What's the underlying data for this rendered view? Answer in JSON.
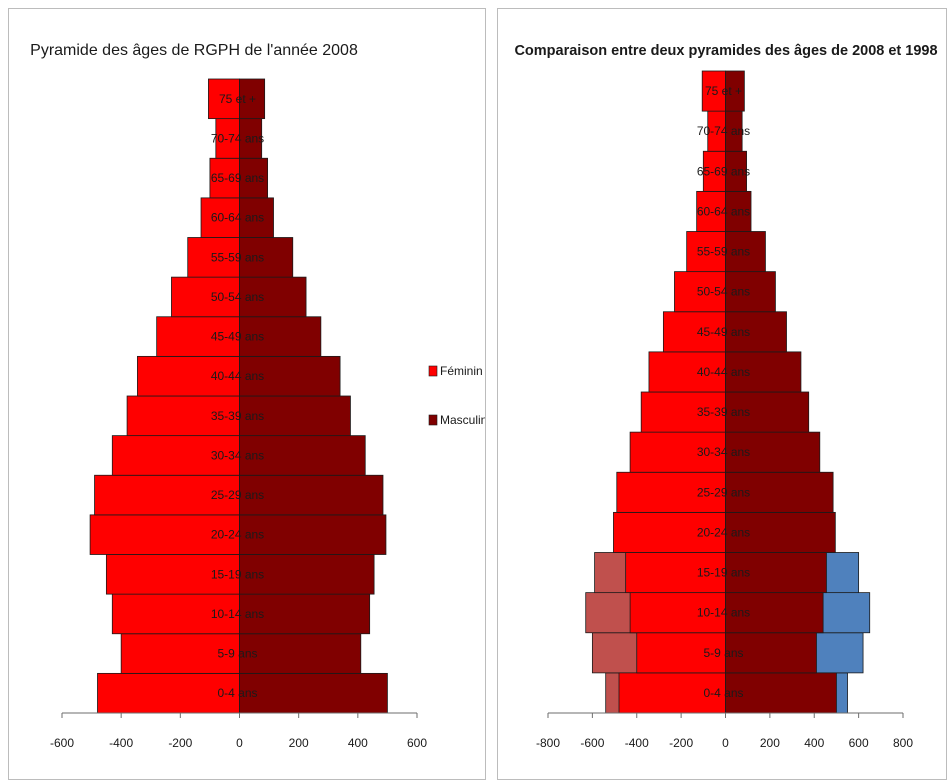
{
  "chart_data": [
    {
      "type": "bar",
      "orientation": "horizontal",
      "title": "Pyramide des âges de RGPH de l'année 2008",
      "categories": [
        "0-4 ans",
        "5-9 ans",
        "10-14 ans",
        "15-19 ans",
        "20-24 ans",
        "25-29 ans",
        "30-34 ans",
        "35-39 ans",
        "40-44 ans",
        "45-49 ans",
        "50-54 ans",
        "55-59 ans",
        "60-64 ans",
        "65-69 ans",
        "70-74 ans",
        "75 et +"
      ],
      "series": [
        {
          "name": "Féminin",
          "color": "#ff0000",
          "values": [
            -480,
            -400,
            -430,
            -450,
            -505,
            -490,
            -430,
            -380,
            -345,
            -280,
            -230,
            -175,
            -130,
            -100,
            -80,
            -105
          ]
        },
        {
          "name": "Masculin",
          "color": "#800000",
          "values": [
            500,
            410,
            440,
            455,
            495,
            485,
            425,
            375,
            340,
            275,
            225,
            180,
            115,
            95,
            75,
            85
          ]
        }
      ],
      "xlim": [
        -600,
        600
      ],
      "xticks": [
        -600,
        -400,
        -200,
        0,
        200,
        400,
        600
      ],
      "legend": "right"
    },
    {
      "type": "bar",
      "orientation": "horizontal",
      "title": "Comparaison entre deux pyramides des âges de 2008 et 1998",
      "categories": [
        "0-4 ans",
        "5-9 ans",
        "10-14 ans",
        "15-19 ans",
        "20-24 ans",
        "25-29 ans",
        "30-34 ans",
        "35-39 ans",
        "40-44 ans",
        "45-49 ans",
        "50-54 ans",
        "55-59 ans",
        "60-64 ans",
        "65-69 ans",
        "70-74 ans",
        "75 et +"
      ],
      "series": [
        {
          "color": "#c0504d",
          "values": [
            -540,
            -600,
            -630,
            -590,
            null,
            null,
            null,
            null,
            null,
            null,
            null,
            null,
            null,
            null,
            null,
            null
          ]
        },
        {
          "color": "#4f81bd",
          "values": [
            550,
            620,
            650,
            600,
            null,
            null,
            null,
            null,
            null,
            null,
            null,
            null,
            null,
            null,
            null,
            null
          ]
        },
        {
          "color": "#ff0000",
          "values": [
            -480,
            -400,
            -430,
            -450,
            -505,
            -490,
            -430,
            -380,
            -345,
            -280,
            -230,
            -175,
            -130,
            -100,
            -80,
            -105
          ]
        },
        {
          "color": "#800000",
          "values": [
            500,
            410,
            440,
            455,
            495,
            485,
            425,
            375,
            340,
            275,
            225,
            180,
            115,
            95,
            75,
            85
          ]
        }
      ],
      "xlim": [
        -800,
        800
      ],
      "xticks": [
        -800,
        -600,
        -400,
        -200,
        0,
        200,
        400,
        600,
        800
      ]
    }
  ]
}
